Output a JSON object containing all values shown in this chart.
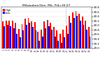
{
  "title": "Milwaukee/Gen. Mit. Fld=30.07",
  "high_color": "#ff0000",
  "low_color": "#0000ff",
  "background_color": "#ffffff",
  "ylim": [
    29.0,
    30.8
  ],
  "ytick_labels": [
    "29.0",
    "29.2",
    "29.4",
    "29.6",
    "29.8",
    "30.0",
    "30.2",
    "30.4",
    "30.6",
    "30.8"
  ],
  "ytick_values": [
    29.0,
    29.2,
    29.4,
    29.6,
    29.8,
    30.0,
    30.2,
    30.4,
    30.6,
    30.8
  ],
  "categories": [
    "1",
    "2",
    "3",
    "4",
    "5",
    "6",
    "7",
    "8",
    "9",
    "10",
    "11",
    "12",
    "13",
    "14",
    "15",
    "16",
    "17",
    "18",
    "19",
    "20",
    "21",
    "22",
    "23",
    "24",
    "25",
    "26",
    "27",
    "28"
  ],
  "highs": [
    30.18,
    30.22,
    30.22,
    30.2,
    30.12,
    29.85,
    30.05,
    30.3,
    30.32,
    30.18,
    30.14,
    29.72,
    29.82,
    30.16,
    30.24,
    30.12,
    29.92,
    29.78,
    29.62,
    29.82,
    29.98,
    30.42,
    30.58,
    30.62,
    30.52,
    30.38,
    30.22,
    29.92
  ],
  "lows": [
    29.95,
    30.02,
    29.97,
    29.87,
    29.62,
    29.48,
    29.77,
    30.02,
    30.12,
    29.92,
    29.77,
    29.32,
    29.52,
    29.87,
    29.97,
    29.82,
    29.52,
    29.32,
    29.22,
    29.48,
    29.62,
    30.12,
    30.32,
    30.42,
    30.22,
    30.02,
    29.82,
    29.52
  ],
  "vline_x": 19.5,
  "vline_color": "#aaaadd",
  "legend_labels": [
    "High",
    "Low"
  ],
  "legend_colors": [
    "#ff0000",
    "#0000ff"
  ]
}
